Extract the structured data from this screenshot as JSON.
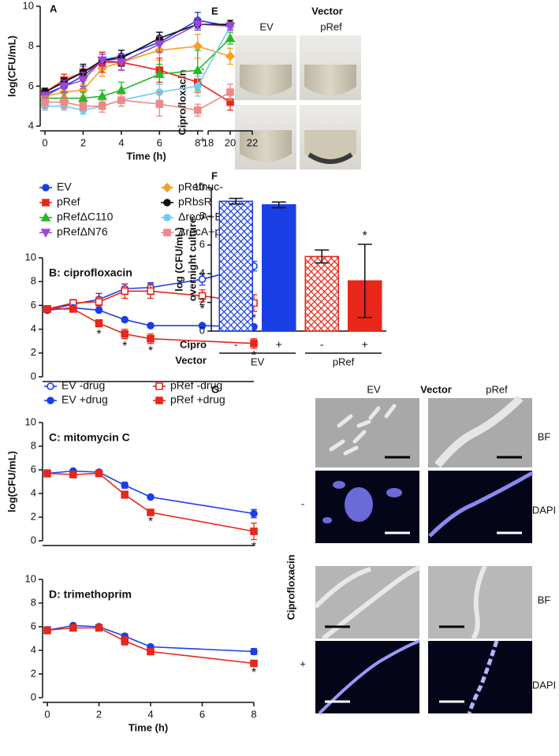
{
  "chart_data": [
    {
      "type": "line",
      "label": "A",
      "xlabel": "Time (h)",
      "ylabel": "log(CFU/mL)",
      "x": [
        0,
        1,
        2,
        3,
        4,
        6,
        8,
        20
      ],
      "xlim": [
        0,
        22
      ],
      "xbreak": [
        8.3,
        18
      ],
      "xticks": [
        0,
        2,
        4,
        6,
        8,
        18,
        20,
        22
      ],
      "ylim": [
        4,
        10
      ],
      "yticks": [
        4,
        6,
        8,
        10
      ],
      "series": [
        {
          "name": "EV",
          "color": "#1a3fe6",
          "marker": "circle",
          "filled": true,
          "values": [
            5.6,
            6.0,
            6.5,
            7.3,
            7.5,
            8.2,
            9.3,
            9.0
          ],
          "errors": [
            0.2,
            0.3,
            0.5,
            0.4,
            0.3,
            0.5,
            0.4,
            0.2
          ]
        },
        {
          "name": "pRefnuc-",
          "color": "#f5a020",
          "marker": "diamond",
          "filled": true,
          "values": [
            5.5,
            5.7,
            5.8,
            6.9,
            7.2,
            7.8,
            8.0,
            7.5
          ],
          "errors": [
            0.2,
            0.3,
            0.3,
            0.4,
            0.4,
            0.5,
            0.6,
            0.4
          ]
        },
        {
          "name": "pRef",
          "color": "#e8261a",
          "marker": "square",
          "filled": true,
          "values": [
            5.7,
            6.3,
            6.7,
            7.2,
            7.2,
            6.8,
            6.2,
            5.2
          ],
          "errors": [
            0.2,
            0.3,
            0.4,
            0.5,
            0.4,
            0.6,
            0.5,
            0.4
          ]
        },
        {
          "name": "pRbsR",
          "color": "#111111",
          "marker": "circle",
          "filled": true,
          "values": [
            5.7,
            6.2,
            6.7,
            7.3,
            7.4,
            8.4,
            9.1,
            9.1
          ],
          "errors": [
            0.2,
            0.2,
            0.4,
            0.3,
            0.4,
            0.3,
            0.3,
            0.2
          ]
        },
        {
          "name": "pRefΔC110",
          "color": "#25b825",
          "marker": "triangle",
          "filled": true,
          "values": [
            5.4,
            5.4,
            5.4,
            5.5,
            5.8,
            6.6,
            6.8,
            8.4
          ],
          "errors": [
            0.2,
            0.3,
            0.3,
            0.3,
            0.4,
            0.5,
            1.0,
            0.3
          ]
        },
        {
          "name": "ΔrecA+EV",
          "color": "#6ccdf2",
          "marker": "circle",
          "filled": true,
          "values": [
            5.0,
            5.0,
            4.8,
            5.0,
            5.3,
            5.7,
            6.0,
            9.0
          ],
          "errors": [
            0.2,
            0.2,
            0.2,
            0.3,
            0.3,
            0.4,
            0.5,
            0.2
          ]
        },
        {
          "name": "pRefΔN76",
          "color": "#9b47d6",
          "marker": "triangle-down",
          "filled": true,
          "values": [
            5.5,
            6.0,
            6.3,
            7.3,
            7.2,
            8.1,
            9.1,
            9.0
          ],
          "errors": [
            0.2,
            0.3,
            0.4,
            0.3,
            0.4,
            0.4,
            0.3,
            0.2
          ]
        },
        {
          "name": "ΔrecA+pRef",
          "color": "#f08888",
          "marker": "square",
          "filled": true,
          "values": [
            5.2,
            5.2,
            5.0,
            5.0,
            5.3,
            5.1,
            4.8,
            5.7
          ],
          "errors": [
            0.3,
            0.3,
            0.2,
            0.3,
            0.3,
            0.6,
            0.3,
            0.4
          ]
        }
      ]
    },
    {
      "type": "line",
      "title": "B: ciprofloxacin",
      "xlim": [
        0,
        8
      ],
      "ylim": [
        0,
        10
      ],
      "yticks": [
        0,
        2,
        4,
        6,
        8,
        10
      ],
      "series": [
        {
          "name": "EV -drug",
          "color": "#1a3fe6",
          "marker": "circle",
          "filled": false,
          "x": [
            0,
            1,
            2,
            3,
            4,
            6,
            8
          ],
          "values": [
            5.6,
            6.1,
            6.5,
            7.4,
            7.5,
            8.2,
            9.3
          ],
          "errors": [
            0.2,
            0.3,
            0.5,
            0.4,
            0.4,
            0.5,
            0.4
          ]
        },
        {
          "name": "pRef -drug",
          "color": "#e8261a",
          "marker": "square",
          "filled": false,
          "x": [
            0,
            1,
            2,
            3,
            4,
            6,
            8
          ],
          "values": [
            5.7,
            6.2,
            6.3,
            7.2,
            7.2,
            6.8,
            6.2
          ],
          "errors": [
            0.2,
            0.3,
            0.4,
            0.6,
            0.6,
            0.5,
            0.7
          ],
          "sig": [
            null,
            null,
            null,
            null,
            null,
            "*",
            "*"
          ]
        },
        {
          "name": "EV +drug",
          "color": "#1a3fe6",
          "marker": "circle",
          "filled": true,
          "x": [
            0,
            1,
            2,
            3,
            4,
            6,
            8
          ],
          "values": [
            5.6,
            5.8,
            5.6,
            4.8,
            4.3,
            4.3,
            4.2
          ],
          "errors": [
            0.15,
            0.15,
            0.1,
            0.15,
            0.1,
            0.1,
            0.1
          ]
        },
        {
          "name": "pRef +drug",
          "color": "#e8261a",
          "marker": "square",
          "filled": true,
          "x": [
            0,
            1,
            2,
            3,
            4,
            8
          ],
          "values": [
            5.7,
            5.7,
            4.5,
            3.6,
            3.2,
            2.8
          ],
          "errors": [
            0.2,
            0.2,
            0.3,
            0.4,
            0.4,
            0.4
          ],
          "sig": [
            null,
            null,
            "*",
            "*",
            "*",
            "*"
          ]
        }
      ]
    },
    {
      "type": "line",
      "title": "C: mitomycin C",
      "ylabel": "log(CFU/mL)",
      "x": [
        0,
        1,
        2,
        3,
        4,
        8
      ],
      "xlim": [
        0,
        8
      ],
      "ylim": [
        0,
        10
      ],
      "yticks": [
        0,
        2,
        4,
        6,
        8,
        10
      ],
      "series": [
        {
          "color": "#1a3fe6",
          "marker": "circle",
          "filled": true,
          "values": [
            5.7,
            5.9,
            5.8,
            4.7,
            3.7,
            2.3
          ],
          "errors": [
            0.3,
            0.1,
            0.1,
            0.25,
            0.1,
            0.35
          ]
        },
        {
          "color": "#e8261a",
          "marker": "square",
          "filled": true,
          "values": [
            5.7,
            5.6,
            5.7,
            3.9,
            2.4,
            0.8
          ],
          "errors": [
            0.2,
            0.2,
            0.1,
            0.3,
            0.15,
            0.7
          ],
          "sig": [
            null,
            null,
            null,
            null,
            "*",
            "*"
          ]
        }
      ]
    },
    {
      "type": "line",
      "title": "D: trimethoprim",
      "xlabel": "Time (h)",
      "x": [
        0,
        1,
        2,
        3,
        4,
        8
      ],
      "xlim": [
        0,
        8
      ],
      "xticks": [
        0,
        2,
        4,
        6,
        8
      ],
      "ylim": [
        0,
        10
      ],
      "yticks": [
        0,
        2,
        4,
        6,
        8,
        10
      ],
      "series": [
        {
          "color": "#1a3fe6",
          "marker": "circle",
          "filled": true,
          "values": [
            5.7,
            6.1,
            6.0,
            5.2,
            4.3,
            3.9
          ],
          "errors": [
            0.3,
            0.1,
            0.1,
            0.2,
            0.1,
            0.25
          ]
        },
        {
          "color": "#e8261a",
          "marker": "square",
          "filled": true,
          "values": [
            5.7,
            5.9,
            5.9,
            4.8,
            3.9,
            2.9
          ],
          "errors": [
            0.2,
            0.2,
            0.2,
            0.35,
            0.1,
            0.15
          ],
          "sig": [
            null,
            null,
            null,
            null,
            null,
            "*"
          ]
        }
      ]
    },
    {
      "type": "bar",
      "label": "F",
      "ylabel": [
        "log (CFU/mL)",
        "overnight culture"
      ],
      "category_row_label": "Cipro",
      "categories": [
        "-",
        "+",
        "-",
        "+"
      ],
      "group_row_label": "Vector",
      "groups": [
        "EV",
        "pRef"
      ],
      "values": [
        9.05,
        8.8,
        5.2,
        3.5
      ],
      "errors": [
        0.2,
        0.2,
        0.45,
        2.55
      ],
      "sig": [
        null,
        null,
        null,
        "*"
      ],
      "colors": [
        "#1a3fe6",
        "#1a3fe6",
        "#e8261a",
        "#e8261a"
      ],
      "hatched": [
        true,
        false,
        true,
        false
      ],
      "ylim": [
        0,
        10
      ],
      "yticks": [
        0,
        2,
        4,
        6,
        8,
        10
      ]
    }
  ],
  "panel_e": {
    "label": "E",
    "title": "Vector",
    "columns": [
      "EV",
      "pRef"
    ],
    "row_title": "Ciprofloxacin",
    "rows": [
      "-",
      "+"
    ]
  },
  "panel_g": {
    "label": "G",
    "title": "Vector",
    "columns": [
      "EV",
      "pRef"
    ],
    "row_title": "Ciprofloxacin",
    "rows": [
      "-",
      "+"
    ],
    "channels": [
      "BF",
      "DAPI"
    ]
  }
}
